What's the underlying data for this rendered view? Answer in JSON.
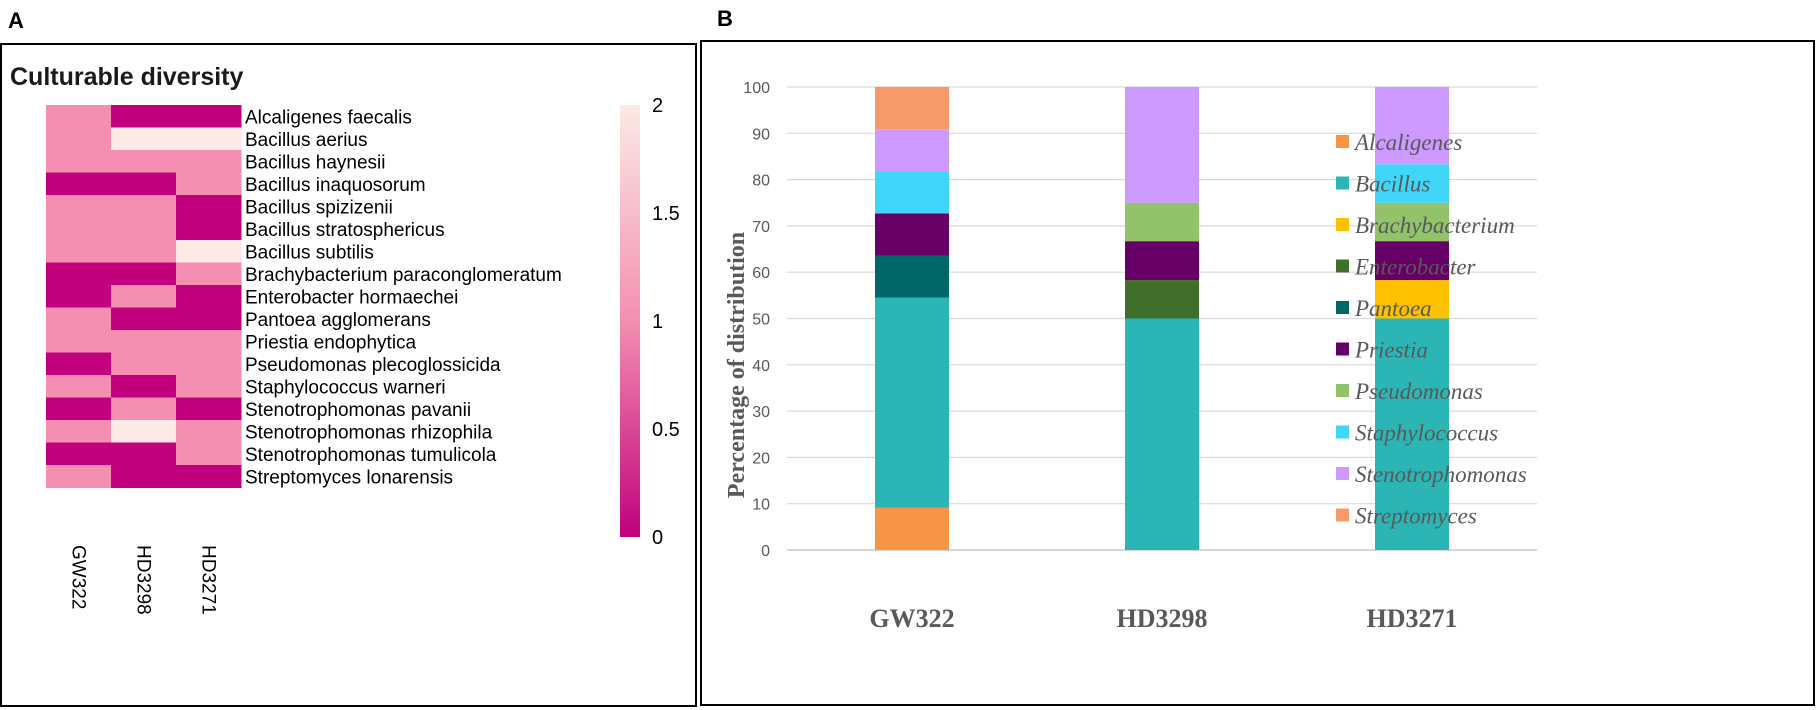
{
  "panel_letters": {
    "a": "A",
    "b": "B"
  },
  "chart_data": [
    {
      "type": "heatmap",
      "title": "Culturable diversity",
      "columns": [
        "GW322",
        "HD3298",
        "HD3271"
      ],
      "rows": [
        "Alcaligenes faecalis",
        "Bacillus aerius",
        "Bacillus haynesii",
        "Bacillus inaquosorum",
        "Bacillus spizizenii",
        "Bacillus stratosphericus",
        "Bacillus subtilis",
        "Brachybacterium paraconglomeratum",
        "Enterobacter hormaechei",
        "Pantoea agglomerans",
        "Priestia endophytica",
        "Pseudomonas plecoglossicida",
        "Staphylococcus warneri",
        "Stenotrophomonas pavanii",
        "Stenotrophomonas rhizophila",
        "Stenotrophomonas tumulicola",
        "Streptomyces lonarensis"
      ],
      "values": [
        [
          1,
          0,
          0
        ],
        [
          1,
          2,
          2
        ],
        [
          1,
          1,
          1
        ],
        [
          0,
          0,
          1
        ],
        [
          1,
          1,
          0
        ],
        [
          1,
          1,
          0
        ],
        [
          1,
          1,
          2
        ],
        [
          0,
          0,
          1
        ],
        [
          0,
          1,
          0
        ],
        [
          1,
          0,
          0
        ],
        [
          1,
          1,
          1
        ],
        [
          0,
          1,
          1
        ],
        [
          1,
          0,
          1
        ],
        [
          0,
          1,
          0
        ],
        [
          1,
          2,
          1
        ],
        [
          0,
          0,
          1
        ],
        [
          1,
          0,
          0
        ]
      ],
      "colorbar": {
        "min": 0,
        "max": 2,
        "ticks": [
          "2",
          "1.5",
          "1",
          "0.5",
          "0"
        ],
        "tick_values": [
          2,
          1.5,
          1,
          0.5,
          0
        ],
        "colors": {
          "low": "#c0007c",
          "mid": "#f48fb1",
          "high": "#fbeae5"
        }
      }
    },
    {
      "type": "bar",
      "stacked": true,
      "categories": [
        "GW322",
        "HD3298",
        "HD3271"
      ],
      "ylabel": "Percentage of distribution",
      "xlabel": "",
      "ylim": [
        0,
        100
      ],
      "yticks": [
        0,
        10,
        20,
        30,
        40,
        50,
        60,
        70,
        80,
        90,
        100
      ],
      "grid": true,
      "legend_position": "right",
      "series": [
        {
          "name": "Alcaligenes",
          "color": "#f79646",
          "values": [
            9.1,
            0,
            0
          ]
        },
        {
          "name": "Bacillus",
          "color": "#2cb5b5",
          "values": [
            45.4,
            50,
            50
          ]
        },
        {
          "name": "Brachybacterium",
          "color": "#ffc000",
          "values": [
            0,
            0,
            8.3
          ]
        },
        {
          "name": "Enterobacter",
          "color": "#3f6f2a",
          "values": [
            0,
            8.3,
            0
          ]
        },
        {
          "name": "Pantoea",
          "color": "#006666",
          "values": [
            9.1,
            0,
            0
          ]
        },
        {
          "name": "Priestia",
          "color": "#660066",
          "values": [
            9.1,
            8.4,
            8.4
          ]
        },
        {
          "name": "Pseudomonas",
          "color": "#92c36a",
          "values": [
            0,
            8.3,
            8.3
          ]
        },
        {
          "name": "Staphylococcus",
          "color": "#3fd6fa",
          "values": [
            9.1,
            0,
            8.3
          ]
        },
        {
          "name": "Stenotrophomonas",
          "color": "#cc99ff",
          "values": [
            9.1,
            25,
            16.7
          ]
        },
        {
          "name": "Streptomyces",
          "color": "#f79a6a",
          "values": [
            9.1,
            0,
            0
          ]
        }
      ]
    }
  ]
}
